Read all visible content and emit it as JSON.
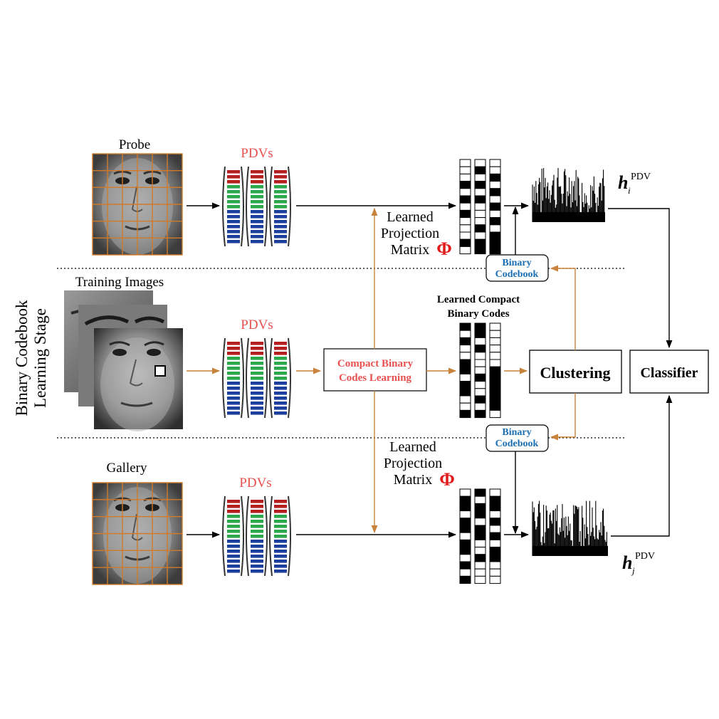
{
  "labels": {
    "probe": "Probe",
    "gallery": "Gallery",
    "training_images": "Training Images",
    "pdvs_top": "PDVs",
    "pdvs_mid": "PDVs",
    "pdvs_bottom": "PDVs",
    "stage_line1": "Binary Codebook",
    "stage_line2": "Learning Stage",
    "compact_line1": "Compact Binary",
    "compact_line2": "Codes Learning",
    "learned_codes_line1": "Learned Compact",
    "learned_codes_line2": "Binary Codes",
    "clustering": "Clustering",
    "classifier": "Classifier",
    "codebook_top_line1": "Binary",
    "codebook_top_line2": "Codebook",
    "codebook_bottom_line1": "Binary",
    "codebook_bottom_line2": "Codebook",
    "proj_top_line1": "Learned",
    "proj_top_line2": "Projection",
    "proj_top_line3": "Matrix",
    "proj_bottom_line1": "Learned",
    "proj_bottom_line2": "Projection",
    "proj_bottom_line3": "Matrix",
    "phi_top": "Φ",
    "phi_bottom": "Φ",
    "h_top_base": "h",
    "h_top_sub": "i",
    "h_top_sup": "PDV",
    "h_bottom_base": "h",
    "h_bottom_sub": "j",
    "h_bottom_sup": "PDV"
  },
  "colors": {
    "accent_red": "#e8514f",
    "flow_orange": "#c8823a",
    "grid_orange": "#d07a2a",
    "codebook_blue": "#1a6fb5",
    "phi_red": "#e21c1c",
    "pdv_red": "#b41e1e",
    "pdv_green": "#2aa84a",
    "pdv_blue": "#1c3f9e"
  }
}
